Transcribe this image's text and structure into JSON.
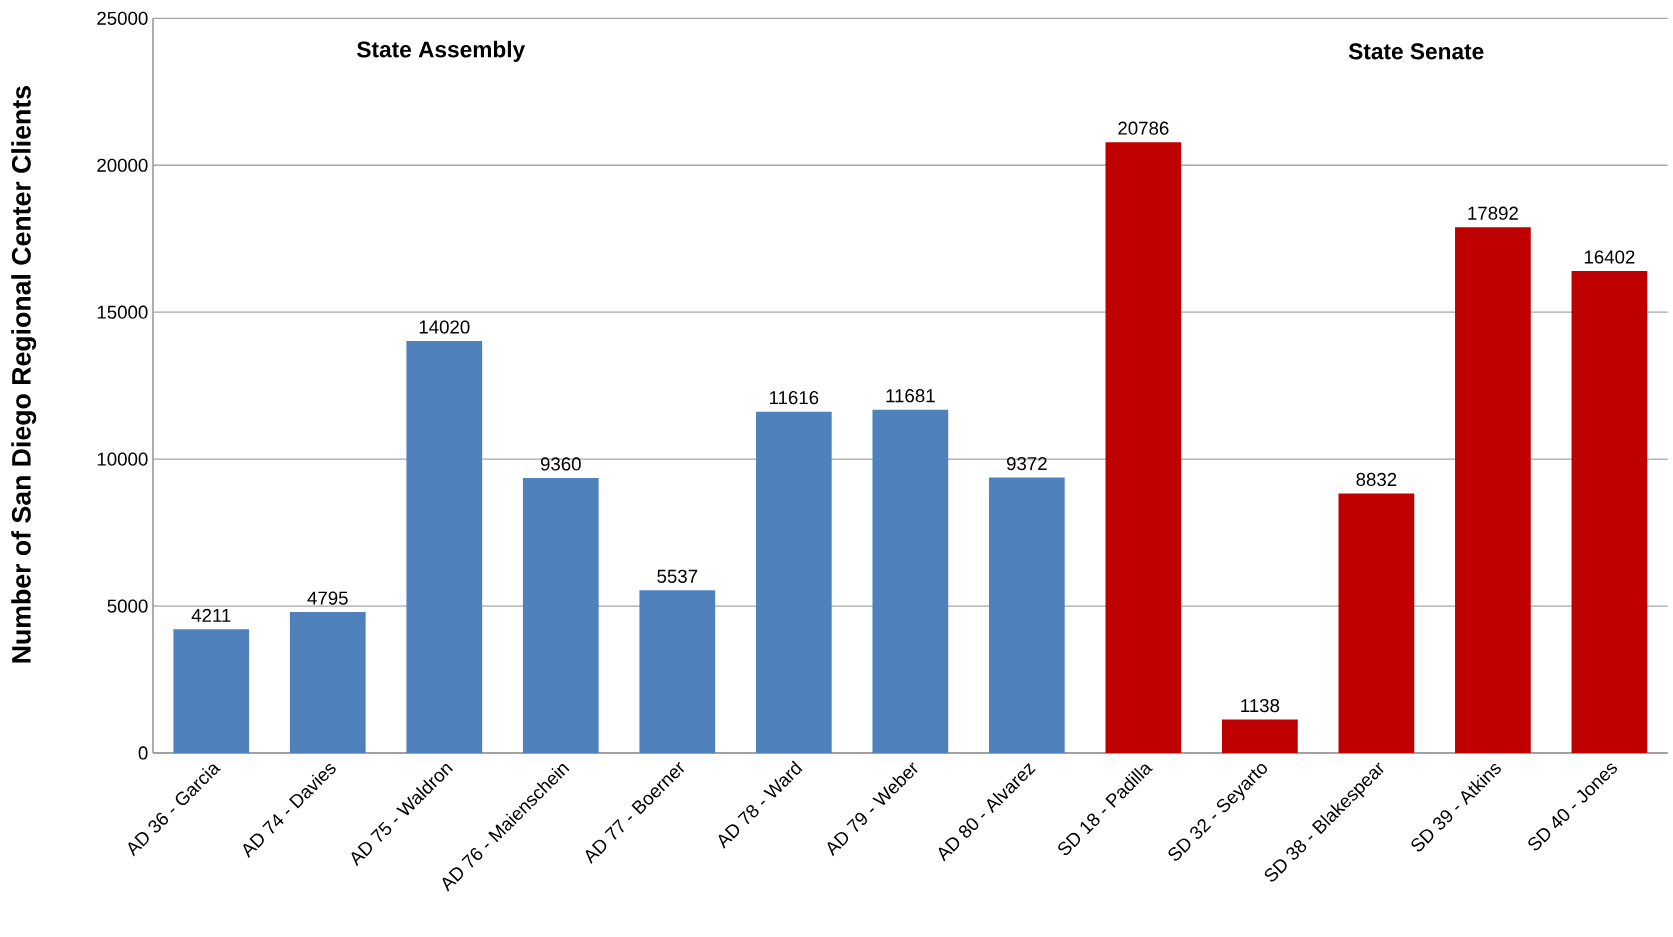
{
  "chart_data": {
    "type": "bar",
    "ylabel": "Number of San Diego Regional Center Clients",
    "annotations": [
      "State Assembly",
      "State Senate"
    ],
    "categories": [
      "AD 36 - Garcia",
      "AD 74 - Davies",
      "AD 75 - Waldron",
      "AD 76 - Maienschein",
      "AD 77 - Boerner",
      "AD 78 - Ward",
      "AD 79 - Weber",
      "AD 80 - Alvarez",
      "SD 18 - Padilla",
      "SD 32 - Seyarto",
      "SD 38 - Blakespear",
      "SD 39 - Atkins",
      "SD 40 - Jones"
    ],
    "values": [
      4211,
      4795,
      14020,
      9360,
      5537,
      11616,
      11681,
      9372,
      20786,
      1138,
      8832,
      17892,
      16402
    ],
    "colors": [
      "#4f81bd",
      "#4f81bd",
      "#4f81bd",
      "#4f81bd",
      "#4f81bd",
      "#4f81bd",
      "#4f81bd",
      "#4f81bd",
      "#c00000",
      "#c00000",
      "#c00000",
      "#c00000",
      "#c00000"
    ],
    "ylim": [
      0,
      25000
    ],
    "yticks": [
      0,
      5000,
      10000,
      15000,
      20000,
      25000
    ],
    "grid": "y",
    "data_labels": true
  }
}
